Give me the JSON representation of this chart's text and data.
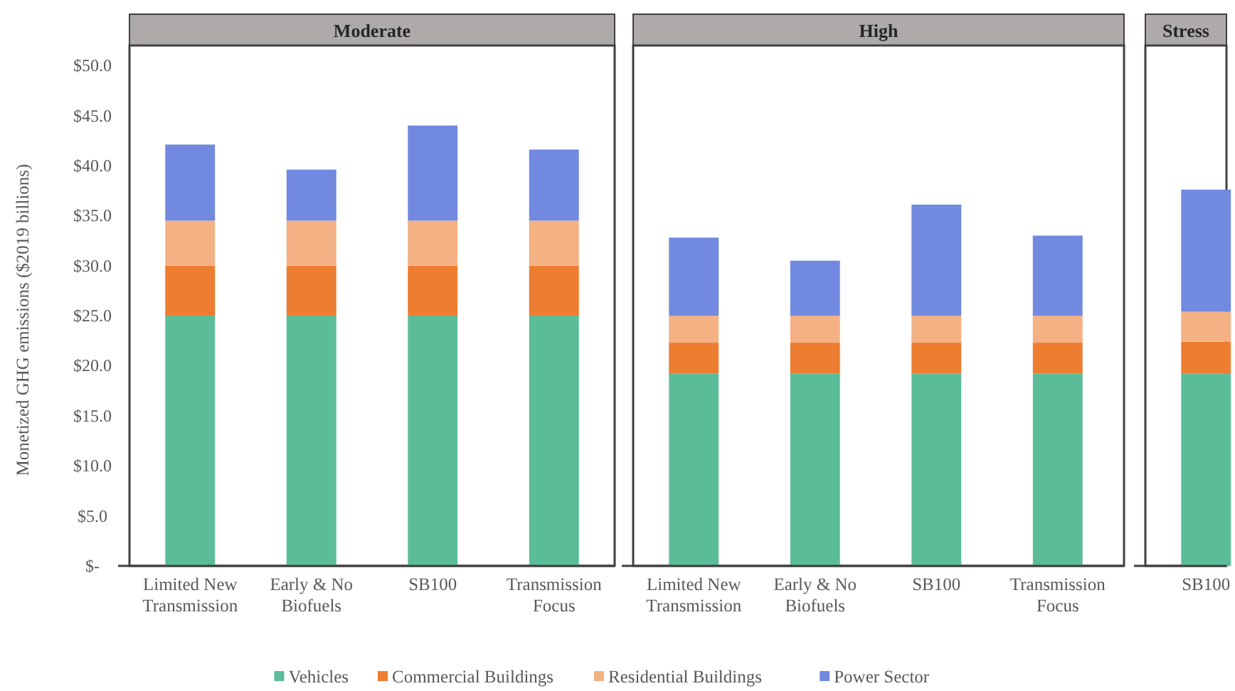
{
  "chart_data": [
    {
      "type": "bar",
      "title": "Moderate",
      "ylabel": "Monetized GHG emissions ($2019 billions)",
      "categories": [
        "Limited New Transmission",
        "Early & No Biofuels",
        "SB100",
        "Transmission Focus"
      ],
      "stacked": true,
      "ylim": [
        0,
        52
      ],
      "yticks": [
        {
          "value": 0,
          "label": "$-"
        },
        {
          "value": 5,
          "label": "$5.0"
        },
        {
          "value": 10,
          "label": "$10.0"
        },
        {
          "value": 15,
          "label": "$15.0"
        },
        {
          "value": 20,
          "label": "$20.0"
        },
        {
          "value": 25,
          "label": "$25.0"
        },
        {
          "value": 30,
          "label": "$30.0"
        },
        {
          "value": 35,
          "label": "$35.0"
        },
        {
          "value": 40,
          "label": "$40.0"
        },
        {
          "value": 45,
          "label": "$45.0"
        },
        {
          "value": 50,
          "label": "$50.0"
        }
      ],
      "grid": false,
      "legend": "bottom",
      "series": [
        {
          "name": "Vehicles",
          "color": "#5bbd98",
          "values": [
            25.0,
            25.0,
            25.0,
            25.0
          ]
        },
        {
          "name": "Commercial Buildings",
          "color": "#ed7d31",
          "values": [
            5.0,
            5.0,
            5.0,
            5.0
          ]
        },
        {
          "name": "Residential Buildings",
          "color": "#f4b183",
          "values": [
            4.5,
            4.5,
            4.5,
            4.5
          ]
        },
        {
          "name": "Power Sector",
          "color": "#718adf",
          "values": [
            7.6,
            5.1,
            9.5,
            7.1
          ]
        }
      ]
    },
    {
      "type": "bar",
      "title": "High",
      "categories": [
        "Limited New Transmission",
        "Early & No Biofuels",
        "SB100",
        "Transmission Focus"
      ],
      "stacked": true,
      "ylim": [
        0,
        52
      ],
      "tick_labels": "x",
      "series": [
        {
          "color": "#5bbd98",
          "values": [
            19.2,
            19.2,
            19.2,
            19.2
          ]
        },
        {
          "color": "#ed7d31",
          "values": [
            3.1,
            3.1,
            3.1,
            3.1
          ]
        },
        {
          "color": "#f4b183",
          "values": [
            2.7,
            2.7,
            2.7,
            2.7
          ]
        },
        {
          "color": "#718adf",
          "values": [
            7.8,
            5.5,
            11.1,
            8.0
          ]
        }
      ]
    },
    {
      "type": "bar",
      "title": "Stress",
      "categories": [
        "SB100"
      ],
      "stacked": true,
      "ylim": [
        0,
        52
      ],
      "tick_labels": "x",
      "series": [
        {
          "color": "#5bbd98",
          "values": [
            19.2
          ]
        },
        {
          "color": "#ed7d31",
          "values": [
            3.2
          ]
        },
        {
          "color": "#f4b183",
          "values": [
            3.0
          ]
        },
        {
          "color": "#718adf",
          "values": [
            12.2
          ]
        }
      ]
    }
  ]
}
